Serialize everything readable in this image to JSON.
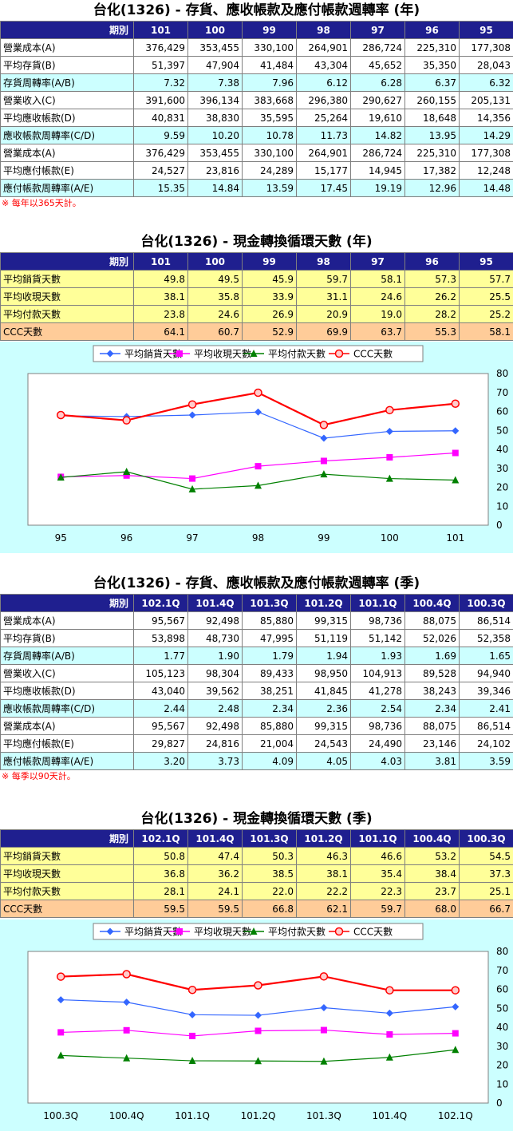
{
  "section1": {
    "title": "台化(1326) -  存貨、應收帳款及應付帳款週轉率 (年)",
    "header_label": "期別",
    "columns": [
      "101",
      "100",
      "99",
      "98",
      "97",
      "96",
      "95"
    ],
    "rows": [
      {
        "label": "營業成本(A)",
        "values": [
          "376,429",
          "353,455",
          "330,100",
          "264,901",
          "286,724",
          "225,310",
          "177,308"
        ],
        "style": "white"
      },
      {
        "label": "平均存貨(B)",
        "values": [
          "51,397",
          "47,904",
          "41,484",
          "43,304",
          "45,652",
          "35,350",
          "28,043"
        ],
        "style": "white"
      },
      {
        "label": "存貨周轉率(A/B)",
        "values": [
          "7.32",
          "7.38",
          "7.96",
          "6.12",
          "6.28",
          "6.37",
          "6.32"
        ],
        "style": "cyan"
      },
      {
        "label": "營業收入(C)",
        "values": [
          "391,600",
          "396,134",
          "383,668",
          "296,380",
          "290,627",
          "260,155",
          "205,131"
        ],
        "style": "white"
      },
      {
        "label": "平均應收帳款(D)",
        "values": [
          "40,831",
          "38,830",
          "35,595",
          "25,264",
          "19,610",
          "18,648",
          "14,356"
        ],
        "style": "white"
      },
      {
        "label": "應收帳款周轉率(C/D)",
        "values": [
          "9.59",
          "10.20",
          "10.78",
          "11.73",
          "14.82",
          "13.95",
          "14.29"
        ],
        "style": "cyan"
      },
      {
        "label": "營業成本(A)",
        "values": [
          "376,429",
          "353,455",
          "330,100",
          "264,901",
          "286,724",
          "225,310",
          "177,308"
        ],
        "style": "white"
      },
      {
        "label": "平均應付帳款(E)",
        "values": [
          "24,527",
          "23,816",
          "24,289",
          "15,177",
          "14,945",
          "17,382",
          "12,248"
        ],
        "style": "white"
      },
      {
        "label": "應付帳款周轉率(A/E)",
        "values": [
          "15.35",
          "14.84",
          "13.59",
          "17.45",
          "19.19",
          "12.96",
          "14.48"
        ],
        "style": "cyan"
      }
    ],
    "note": "※ 每年以365天計。"
  },
  "section2": {
    "title": "台化(1326) -  現金轉換循環天數 (年)",
    "header_label": "期別",
    "columns": [
      "101",
      "100",
      "99",
      "98",
      "97",
      "96",
      "95"
    ],
    "rows": [
      {
        "label": "平均銷貨天數",
        "values": [
          "49.8",
          "49.5",
          "45.9",
          "59.7",
          "58.1",
          "57.3",
          "57.7"
        ],
        "style": "yellow"
      },
      {
        "label": "平均收現天數",
        "values": [
          "38.1",
          "35.8",
          "33.9",
          "31.1",
          "24.6",
          "26.2",
          "25.5"
        ],
        "style": "yellow"
      },
      {
        "label": "平均付款天數",
        "values": [
          "23.8",
          "24.6",
          "26.9",
          "20.9",
          "19.0",
          "28.2",
          "25.2"
        ],
        "style": "yellow"
      },
      {
        "label": "CCC天數",
        "values": [
          "64.1",
          "60.7",
          "52.9",
          "69.9",
          "63.7",
          "55.3",
          "58.1"
        ],
        "style": "orange"
      }
    ]
  },
  "section3": {
    "title": "台化(1326) -  存貨、應收帳款及應付帳款週轉率 (季)",
    "header_label": "期別",
    "columns": [
      "102.1Q",
      "101.4Q",
      "101.3Q",
      "101.2Q",
      "101.1Q",
      "100.4Q",
      "100.3Q"
    ],
    "rows": [
      {
        "label": "營業成本(A)",
        "values": [
          "95,567",
          "92,498",
          "85,880",
          "99,315",
          "98,736",
          "88,075",
          "86,514"
        ],
        "style": "white"
      },
      {
        "label": "平均存貨(B)",
        "values": [
          "53,898",
          "48,730",
          "47,995",
          "51,119",
          "51,142",
          "52,026",
          "52,358"
        ],
        "style": "white"
      },
      {
        "label": "存貨周轉率(A/B)",
        "values": [
          "1.77",
          "1.90",
          "1.79",
          "1.94",
          "1.93",
          "1.69",
          "1.65"
        ],
        "style": "cyan"
      },
      {
        "label": "營業收入(C)",
        "values": [
          "105,123",
          "98,304",
          "89,433",
          "98,950",
          "104,913",
          "89,528",
          "94,940"
        ],
        "style": "white"
      },
      {
        "label": "平均應收帳款(D)",
        "values": [
          "43,040",
          "39,562",
          "38,251",
          "41,845",
          "41,278",
          "38,243",
          "39,346"
        ],
        "style": "white"
      },
      {
        "label": "應收帳款周轉率(C/D)",
        "values": [
          "2.44",
          "2.48",
          "2.34",
          "2.36",
          "2.54",
          "2.34",
          "2.41"
        ],
        "style": "cyan"
      },
      {
        "label": "營業成本(A)",
        "values": [
          "95,567",
          "92,498",
          "85,880",
          "99,315",
          "98,736",
          "88,075",
          "86,514"
        ],
        "style": "white"
      },
      {
        "label": "平均應付帳款(E)",
        "values": [
          "29,827",
          "24,816",
          "21,004",
          "24,543",
          "24,490",
          "23,146",
          "24,102"
        ],
        "style": "white"
      },
      {
        "label": "應付帳款周轉率(A/E)",
        "values": [
          "3.20",
          "3.73",
          "4.09",
          "4.05",
          "4.03",
          "3.81",
          "3.59"
        ],
        "style": "cyan"
      }
    ],
    "note": "※ 每季以90天計。"
  },
  "section4": {
    "title": "台化(1326) -  現金轉換循環天數 (季)",
    "header_label": "期別",
    "columns": [
      "102.1Q",
      "101.4Q",
      "101.3Q",
      "101.2Q",
      "101.1Q",
      "100.4Q",
      "100.3Q"
    ],
    "rows": [
      {
        "label": "平均銷貨天數",
        "values": [
          "50.8",
          "47.4",
          "50.3",
          "46.3",
          "46.6",
          "53.2",
          "54.5"
        ],
        "style": "yellow"
      },
      {
        "label": "平均收現天數",
        "values": [
          "36.8",
          "36.2",
          "38.5",
          "38.1",
          "35.4",
          "38.4",
          "37.3"
        ],
        "style": "yellow"
      },
      {
        "label": "平均付款天數",
        "values": [
          "28.1",
          "24.1",
          "22.0",
          "22.2",
          "22.3",
          "23.7",
          "25.1"
        ],
        "style": "yellow"
      },
      {
        "label": "CCC天數",
        "values": [
          "59.5",
          "59.5",
          "66.8",
          "62.1",
          "59.7",
          "68.0",
          "66.7"
        ],
        "style": "orange"
      }
    ]
  },
  "chart_data": [
    {
      "type": "line",
      "categories": [
        "95",
        "96",
        "97",
        "98",
        "99",
        "100",
        "101"
      ],
      "ylim": [
        0,
        80
      ],
      "yticks": [
        0,
        10,
        20,
        30,
        40,
        50,
        60,
        70,
        80
      ],
      "grid": false,
      "legend": "top",
      "series": [
        {
          "name": "平均銷貨天數",
          "values": [
            57.7,
            57.3,
            58.1,
            59.7,
            45.9,
            49.5,
            49.8
          ],
          "color": "#3366ff",
          "marker": "diamond"
        },
        {
          "name": "平均收現天數",
          "values": [
            25.5,
            26.2,
            24.6,
            31.1,
            33.9,
            35.8,
            38.1
          ],
          "color": "#ff00ff",
          "marker": "square"
        },
        {
          "name": "平均付款天數",
          "values": [
            25.2,
            28.2,
            19.0,
            20.9,
            26.9,
            24.6,
            23.8
          ],
          "color": "#008000",
          "marker": "triangle"
        },
        {
          "name": "CCC天數",
          "values": [
            58.1,
            55.3,
            63.7,
            69.9,
            52.9,
            60.7,
            64.1
          ],
          "color": "#ff0000",
          "marker": "circle"
        }
      ]
    },
    {
      "type": "line",
      "categories": [
        "100.3Q",
        "100.4Q",
        "101.1Q",
        "101.2Q",
        "101.3Q",
        "101.4Q",
        "102.1Q"
      ],
      "ylim": [
        0,
        80
      ],
      "yticks": [
        0,
        10,
        20,
        30,
        40,
        50,
        60,
        70,
        80
      ],
      "grid": false,
      "legend": "top",
      "series": [
        {
          "name": "平均銷貨天數",
          "values": [
            54.5,
            53.2,
            46.6,
            46.3,
            50.3,
            47.4,
            50.8
          ],
          "color": "#3366ff",
          "marker": "diamond"
        },
        {
          "name": "平均收現天數",
          "values": [
            37.3,
            38.4,
            35.4,
            38.1,
            38.5,
            36.2,
            36.8
          ],
          "color": "#ff00ff",
          "marker": "square"
        },
        {
          "name": "平均付款天數",
          "values": [
            25.1,
            23.7,
            22.3,
            22.2,
            22.0,
            24.1,
            28.1
          ],
          "color": "#008000",
          "marker": "triangle"
        },
        {
          "name": "CCC天數",
          "values": [
            66.7,
            68.0,
            59.7,
            62.1,
            66.8,
            59.5,
            59.5
          ],
          "color": "#ff0000",
          "marker": "circle"
        }
      ]
    }
  ]
}
